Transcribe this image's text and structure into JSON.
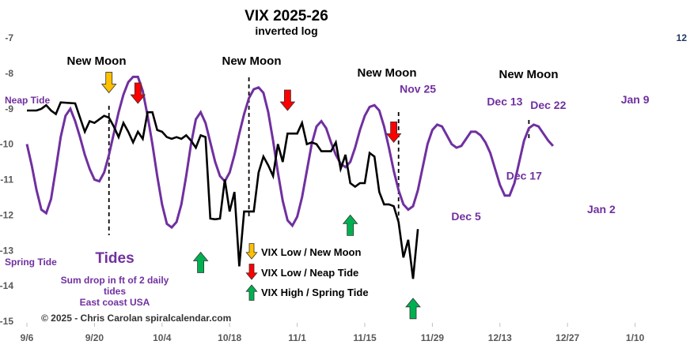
{
  "chart_data": {
    "type": "line",
    "title": "VIX 2025-26",
    "subtitle": "inverted log",
    "y_left": {
      "ticks": [
        "-7",
        "-8",
        "-9",
        "-10",
        "-11",
        "-12",
        "-13",
        "-14",
        "-15"
      ],
      "range": [
        -15,
        -7
      ]
    },
    "y_right": {
      "ticks": [
        "12"
      ]
    },
    "x": {
      "ticks": [
        "9/6",
        "9/20",
        "10/4",
        "10/18",
        "11/1",
        "11/15",
        "11/29",
        "12/13",
        "12/27",
        "1/10"
      ]
    },
    "series": [
      {
        "color": "#000000",
        "points": [
          [
            0,
            -9.05
          ],
          [
            2,
            -9.05
          ],
          [
            3,
            -9.0
          ],
          [
            4,
            -8.9
          ],
          [
            5,
            -9.05
          ],
          [
            6,
            -9.15
          ],
          [
            7,
            -8.82
          ],
          [
            10,
            -8.85
          ],
          [
            11,
            -9.25
          ],
          [
            12,
            -9.65
          ],
          [
            13,
            -9.35
          ],
          [
            14,
            -9.4
          ],
          [
            15,
            -9.3
          ],
          [
            16,
            -9.2
          ],
          [
            17,
            -9.25
          ],
          [
            18,
            -9.5
          ],
          [
            19,
            -9.8
          ],
          [
            20,
            -9.4
          ],
          [
            21,
            -9.65
          ],
          [
            22,
            -9.95
          ],
          [
            23,
            -9.65
          ],
          [
            24,
            -9.85
          ],
          [
            25,
            -9.1
          ],
          [
            26,
            -9.1
          ],
          [
            27,
            -9.6
          ],
          [
            28,
            -9.65
          ],
          [
            29,
            -9.8
          ],
          [
            30,
            -9.85
          ],
          [
            31,
            -9.8
          ],
          [
            32,
            -9.85
          ],
          [
            33,
            -9.75
          ],
          [
            34,
            -9.9
          ],
          [
            35,
            -10.1
          ],
          [
            36,
            -9.75
          ],
          [
            37,
            -9.8
          ],
          [
            38,
            -12.1
          ],
          [
            39,
            -12.12
          ],
          [
            40,
            -12.1
          ],
          [
            41,
            -11.0
          ],
          [
            42,
            -11.9
          ],
          [
            43,
            -11.35
          ],
          [
            44,
            -13.45
          ],
          [
            45,
            -11.9
          ],
          [
            46,
            -11.9
          ],
          [
            47,
            -11.9
          ],
          [
            48,
            -10.8
          ],
          [
            49,
            -10.35
          ],
          [
            50,
            -10.6
          ],
          [
            51,
            -10.9
          ],
          [
            52,
            -10.0
          ],
          [
            53,
            -10.5
          ],
          [
            54,
            -9.7
          ],
          [
            56,
            -9.7
          ],
          [
            57,
            -9.4
          ],
          [
            58,
            -10.0
          ],
          [
            59,
            -9.95
          ],
          [
            60,
            -10.0
          ],
          [
            61,
            -10.2
          ],
          [
            62,
            -10.2
          ],
          [
            63,
            -10.2
          ],
          [
            64,
            -9.95
          ],
          [
            65,
            -10.7
          ],
          [
            66,
            -10.3
          ],
          [
            67,
            -11.1
          ],
          [
            68,
            -11.2
          ],
          [
            69,
            -11.1
          ],
          [
            70,
            -11.1
          ],
          [
            71,
            -10.25
          ],
          [
            72,
            -10.35
          ],
          [
            73,
            -11.35
          ],
          [
            74,
            -11.7
          ],
          [
            75,
            -11.7
          ],
          [
            76,
            -11.75
          ],
          [
            77,
            -12.2
          ],
          [
            78,
            -13.2
          ],
          [
            79,
            -12.7
          ],
          [
            80,
            -13.8
          ],
          [
            81,
            -12.4
          ]
        ]
      },
      {
        "color": "#7030a0",
        "points": [
          [
            0,
            -10.0
          ],
          [
            1,
            -10.6
          ],
          [
            2,
            -11.3
          ],
          [
            3,
            -11.85
          ],
          [
            4,
            -11.95
          ],
          [
            5,
            -11.55
          ],
          [
            6,
            -10.7
          ],
          [
            7,
            -9.8
          ],
          [
            8,
            -9.2
          ],
          [
            9,
            -9.0
          ],
          [
            10,
            -9.35
          ],
          [
            11,
            -9.8
          ],
          [
            12,
            -10.3
          ],
          [
            13,
            -10.7
          ],
          [
            14,
            -11.0
          ],
          [
            15,
            -11.05
          ],
          [
            16,
            -10.8
          ],
          [
            17,
            -10.3
          ],
          [
            18,
            -9.7
          ],
          [
            19,
            -9.1
          ],
          [
            20,
            -8.6
          ],
          [
            21,
            -8.25
          ],
          [
            22,
            -8.1
          ],
          [
            23,
            -8.1
          ],
          [
            24,
            -8.5
          ],
          [
            25,
            -9.2
          ],
          [
            26,
            -10.0
          ],
          [
            27,
            -10.9
          ],
          [
            28,
            -11.7
          ],
          [
            29,
            -12.25
          ],
          [
            30,
            -12.35
          ],
          [
            31,
            -12.2
          ],
          [
            32,
            -11.7
          ],
          [
            33,
            -10.9
          ],
          [
            34,
            -10.0
          ],
          [
            35,
            -9.3
          ],
          [
            36,
            -9.1
          ],
          [
            37,
            -9.4
          ],
          [
            38,
            -9.95
          ],
          [
            39,
            -10.5
          ],
          [
            40,
            -10.9
          ],
          [
            41,
            -11.05
          ],
          [
            42,
            -10.8
          ],
          [
            43,
            -10.3
          ],
          [
            44,
            -9.7
          ],
          [
            45,
            -9.15
          ],
          [
            46,
            -8.7
          ],
          [
            47,
            -8.45
          ],
          [
            48,
            -8.4
          ],
          [
            49,
            -8.55
          ],
          [
            50,
            -9.1
          ],
          [
            51,
            -9.9
          ],
          [
            52,
            -10.8
          ],
          [
            53,
            -11.6
          ],
          [
            54,
            -12.15
          ],
          [
            55,
            -12.3
          ],
          [
            56,
            -12.05
          ],
          [
            57,
            -11.5
          ],
          [
            58,
            -10.75
          ],
          [
            59,
            -10.0
          ],
          [
            60,
            -9.5
          ],
          [
            61,
            -9.35
          ],
          [
            62,
            -9.55
          ],
          [
            63,
            -9.95
          ],
          [
            64,
            -10.3
          ],
          [
            65,
            -10.55
          ],
          [
            66,
            -10.65
          ],
          [
            67,
            -10.5
          ],
          [
            68,
            -10.1
          ],
          [
            69,
            -9.6
          ],
          [
            70,
            -9.2
          ],
          [
            71,
            -8.95
          ],
          [
            72,
            -8.9
          ],
          [
            73,
            -9.05
          ],
          [
            74,
            -9.5
          ],
          [
            75,
            -10.1
          ],
          [
            76,
            -10.75
          ],
          [
            77,
            -11.3
          ],
          [
            78,
            -11.7
          ],
          [
            79,
            -11.85
          ],
          [
            80,
            -11.75
          ],
          [
            81,
            -11.3
          ],
          [
            82,
            -10.65
          ],
          [
            83,
            -10.0
          ],
          [
            84,
            -9.6
          ],
          [
            85,
            -9.45
          ],
          [
            86,
            -9.5
          ],
          [
            87,
            -9.75
          ],
          [
            88,
            -10.0
          ],
          [
            89,
            -10.1
          ],
          [
            90,
            -10.05
          ],
          [
            91,
            -9.85
          ],
          [
            92,
            -9.65
          ],
          [
            93,
            -9.65
          ],
          [
            94,
            -9.75
          ],
          [
            95,
            -9.95
          ],
          [
            96,
            -10.25
          ],
          [
            97,
            -10.7
          ],
          [
            98,
            -11.15
          ],
          [
            99,
            -11.45
          ],
          [
            100,
            -11.45
          ],
          [
            101,
            -11.1
          ],
          [
            102,
            -10.5
          ],
          [
            103,
            -9.9
          ],
          [
            104,
            -9.55
          ],
          [
            105,
            -9.45
          ],
          [
            106,
            -9.5
          ],
          [
            107,
            -9.7
          ],
          [
            108,
            -9.9
          ],
          [
            109,
            -10.05
          ]
        ]
      }
    ],
    "annotations": {
      "new_moon": [
        {
          "label": "New Moon",
          "day": 17
        },
        {
          "label": "New Moon",
          "day": 46
        },
        {
          "label": "New Moon",
          "day": 77
        },
        {
          "label": "New Moon",
          "day": 108
        }
      ],
      "dates": [
        {
          "label": "Nov 25",
          "day": 81,
          "y": -8.55
        },
        {
          "label": "Dec 13",
          "day": 99,
          "y": -8.9
        },
        {
          "label": "Dec 22",
          "day": 108,
          "y": -9.0
        },
        {
          "label": "Dec 5",
          "day": 91,
          "y": -12.15
        },
        {
          "label": "Dec 17",
          "day": 103,
          "y": -11.0
        },
        {
          "label": "Jan 2",
          "day": 119,
          "y": -11.95
        },
        {
          "label": "Jan 9",
          "day": 126,
          "y": -8.85
        }
      ],
      "arrows": [
        {
          "type": "orange-down",
          "day": 17,
          "y": -8.55
        },
        {
          "type": "red-down",
          "day": 23,
          "y": -8.85
        },
        {
          "type": "red-down",
          "day": 54,
          "y": -9.05
        },
        {
          "type": "red-down",
          "day": 76,
          "y": -9.95
        },
        {
          "type": "green-up",
          "day": 36,
          "y": -13.05
        },
        {
          "type": "green-up",
          "day": 67,
          "y": -12.0
        },
        {
          "type": "green-up",
          "day": 80,
          "y": -14.35
        }
      ]
    },
    "legend": [
      {
        "marker": "orange-down",
        "label": "VIX Low / New Moon"
      },
      {
        "marker": "red-down",
        "label": "VIX Low / Neap Tide"
      },
      {
        "marker": "green-up",
        "label": "VIX High / Spring Tide"
      }
    ],
    "tide_notes": {
      "neap_label": "Neap Tide",
      "spring_label": "Spring Tide",
      "heading": "Tides",
      "description_lines": [
        "Sum drop in ft of 2 daily",
        "tides",
        "East coast USA"
      ]
    },
    "credit": "©  2025 - Chris Carolan  spiralcalendar.com",
    "colors": {
      "vix": "#000000",
      "tide": "#7030a0",
      "orange": "#ffc000",
      "red": "#ff0000",
      "green": "#00b050"
    }
  }
}
